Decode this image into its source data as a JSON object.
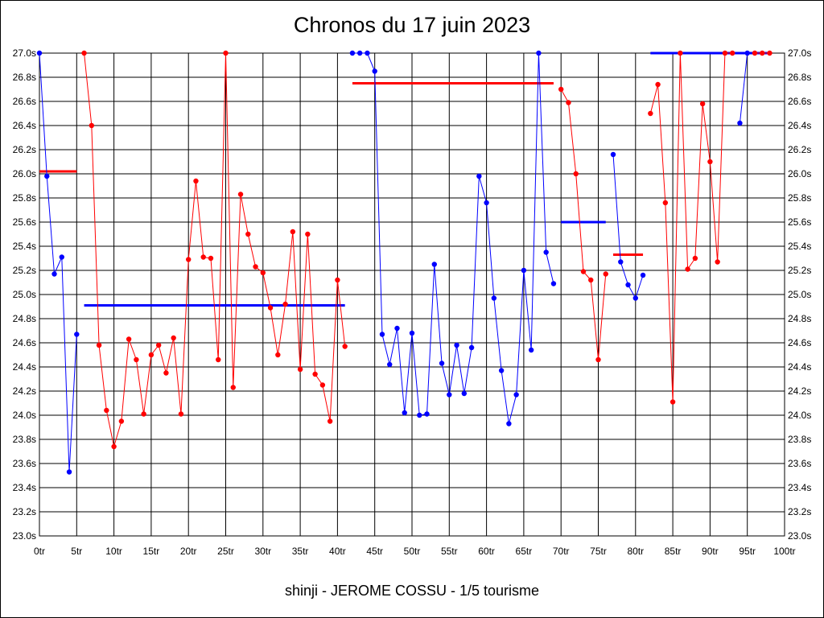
{
  "chart_data": {
    "type": "line",
    "title": "Chronos du 17 juin 2023",
    "footer": "shinji - JEROME COSSU - 1/5 tourisme",
    "xlim": [
      0,
      100
    ],
    "ylim": [
      23.0,
      27.0
    ],
    "x_ticks": [
      0,
      5,
      10,
      15,
      20,
      25,
      30,
      35,
      40,
      45,
      50,
      55,
      60,
      65,
      70,
      75,
      80,
      85,
      90,
      95,
      100
    ],
    "x_tick_labels": [
      "0tr",
      "5tr",
      "10tr",
      "15tr",
      "20tr",
      "25tr",
      "30tr",
      "35tr",
      "40tr",
      "45tr",
      "50tr",
      "55tr",
      "60tr",
      "65tr",
      "70tr",
      "75tr",
      "80tr",
      "85tr",
      "90tr",
      "95tr",
      "100tr"
    ],
    "y_ticks": [
      23.0,
      23.2,
      23.4,
      23.6,
      23.8,
      24.0,
      24.2,
      24.4,
      24.6,
      24.8,
      25.0,
      25.2,
      25.4,
      25.6,
      25.8,
      26.0,
      26.2,
      26.4,
      26.6,
      26.8,
      27.0
    ],
    "y_tick_labels": [
      "23.0s",
      "23.2s",
      "23.4s",
      "23.6s",
      "23.8s",
      "24.0s",
      "24.2s",
      "24.4s",
      "24.6s",
      "24.8s",
      "25.0s",
      "25.2s",
      "25.4s",
      "25.6s",
      "25.8s",
      "26.0s",
      "26.2s",
      "26.4s",
      "26.6s",
      "26.8s",
      "27.0s"
    ],
    "grid": true,
    "colors": {
      "blue": "#0000ff",
      "red": "#ff0000"
    },
    "segments": [
      {
        "color": "blue",
        "x": [
          0,
          1,
          2,
          3,
          4,
          5
        ],
        "y": [
          27.0,
          25.98,
          25.17,
          25.31,
          23.53,
          24.67
        ]
      },
      {
        "color": "red",
        "x": [
          6,
          7,
          8,
          9,
          10,
          11,
          12,
          13,
          14,
          15,
          16,
          17,
          18,
          19,
          20,
          21,
          22,
          23,
          24,
          25,
          26,
          27,
          28,
          29,
          30,
          31,
          32,
          33,
          34,
          35,
          36,
          37,
          38,
          39,
          40,
          41
        ],
        "y": [
          27.0,
          26.4,
          24.58,
          24.04,
          23.74,
          23.95,
          24.63,
          24.46,
          24.01,
          24.5,
          24.58,
          24.35,
          24.64,
          24.01,
          25.29,
          25.94,
          25.31,
          25.3,
          24.46,
          27.0,
          24.23,
          25.83,
          25.5,
          25.23,
          25.18,
          24.89,
          24.5,
          24.92,
          25.52,
          24.38,
          25.5,
          24.34,
          24.25,
          23.95,
          25.12,
          24.57
        ]
      },
      {
        "color": "blue",
        "x": [
          42,
          43,
          44,
          45,
          46,
          47,
          48,
          49,
          50,
          51,
          52,
          53,
          54,
          55,
          56,
          57,
          58,
          59,
          60,
          61,
          62,
          63,
          64,
          65,
          66,
          67,
          68,
          69
        ],
        "y": [
          27.0,
          27.0,
          27.0,
          26.85,
          24.67,
          24.42,
          24.72,
          24.02,
          24.68,
          24.0,
          24.01,
          25.25,
          24.43,
          24.17,
          24.58,
          24.18,
          24.56,
          25.98,
          25.76,
          24.97,
          24.37,
          23.93,
          24.17,
          25.2,
          24.54,
          27.0,
          25.35,
          25.09
        ]
      },
      {
        "color": "red",
        "x": [
          70,
          71,
          72,
          73,
          74,
          75,
          76
        ],
        "y": [
          26.7,
          26.59,
          26.0,
          25.19,
          25.12,
          24.46,
          25.17
        ]
      },
      {
        "color": "blue",
        "x": [
          77,
          78,
          79,
          80,
          81
        ],
        "y": [
          26.16,
          25.27,
          25.08,
          24.97,
          25.16
        ]
      },
      {
        "color": "red",
        "x": [
          82,
          83,
          84,
          85,
          86,
          87,
          88,
          89,
          90,
          91,
          92,
          93
        ],
        "y": [
          26.5,
          26.74,
          25.76,
          24.11,
          27.0,
          25.21,
          25.3,
          26.58,
          26.1,
          25.27,
          27.0,
          27.0
        ]
      },
      {
        "color": "blue",
        "x": [
          94,
          95
        ],
        "y": [
          26.42,
          27.0
        ]
      },
      {
        "color": "red",
        "x": [
          96,
          97,
          98
        ],
        "y": [
          27.0,
          27.0,
          27.0
        ]
      }
    ],
    "averages": [
      {
        "color": "red",
        "x": [
          0,
          5
        ],
        "y": 26.02
      },
      {
        "color": "blue",
        "x": [
          6,
          41
        ],
        "y": 24.91
      },
      {
        "color": "red",
        "x": [
          42,
          69
        ],
        "y": 26.75
      },
      {
        "color": "blue",
        "x": [
          70,
          76
        ],
        "y": 25.6
      },
      {
        "color": "red",
        "x": [
          77,
          81
        ],
        "y": 25.33
      },
      {
        "color": "blue",
        "x": [
          82,
          98
        ],
        "y": 27.0
      }
    ]
  }
}
